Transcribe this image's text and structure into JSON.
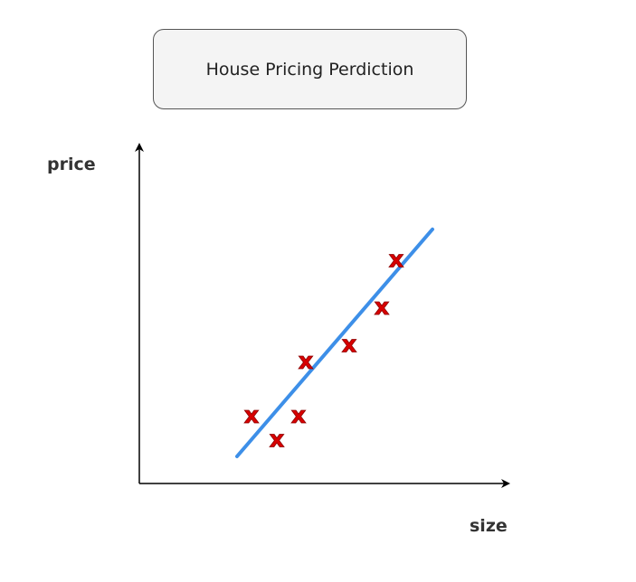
{
  "title": "House Pricing Perdiction",
  "chart_data": {
    "type": "scatter",
    "title": "House Pricing Perdiction",
    "xlabel": "size",
    "ylabel": "price",
    "xlim": [
      0,
      100
    ],
    "ylim": [
      0,
      100
    ],
    "grid": false,
    "marker_glyph": "x",
    "points": [
      {
        "x": 31,
        "y": 20
      },
      {
        "x": 38,
        "y": 13
      },
      {
        "x": 44,
        "y": 20
      },
      {
        "x": 46,
        "y": 36
      },
      {
        "x": 58,
        "y": 41
      },
      {
        "x": 67,
        "y": 52
      },
      {
        "x": 71,
        "y": 66
      }
    ],
    "fit_line": {
      "x": [
        27,
        81
      ],
      "y": [
        8,
        75
      ]
    },
    "colors": {
      "marker_fill": "#d80000",
      "marker_outline": "#8a0000",
      "line": "#3d8fe8",
      "axis": "#000000"
    }
  }
}
